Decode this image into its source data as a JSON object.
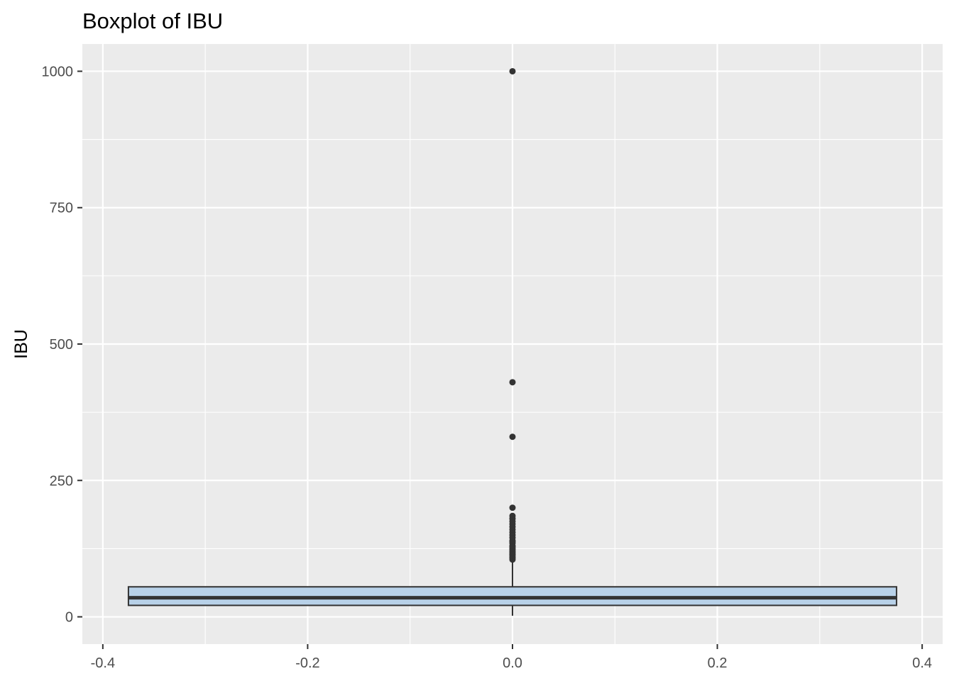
{
  "chart_data": {
    "type": "boxplot",
    "title": "Boxplot of IBU",
    "xlabel": "",
    "ylabel": "IBU",
    "xlim": [
      -0.42,
      0.42
    ],
    "ylim": [
      -50,
      1050
    ],
    "x_ticks": [
      -0.4,
      -0.2,
      0.0,
      0.2,
      0.4
    ],
    "x_tick_labels": [
      "-0.4",
      "-0.2",
      "0.0",
      "0.2",
      "0.4"
    ],
    "y_ticks": [
      0,
      250,
      500,
      750,
      1000
    ],
    "y_tick_labels": [
      "0",
      "250",
      "500",
      "750",
      "1000"
    ],
    "grid": true,
    "legend": "none",
    "box": {
      "x": 0.0,
      "xmin": -0.375,
      "xmax": 0.375,
      "whisker_low": 2,
      "q1": 21,
      "median": 35,
      "q3": 55,
      "whisker_high": 103
    },
    "outliers": [
      105,
      108,
      110,
      113,
      115,
      118,
      120,
      123,
      125,
      128,
      130,
      135,
      138,
      140,
      145,
      150,
      155,
      160,
      165,
      170,
      175,
      180,
      185,
      200,
      330,
      430,
      1000
    ],
    "colors": {
      "panel": "#ebebeb",
      "grid": "#ffffff",
      "box_fill": "#b8d1e8",
      "box_line": "#333333",
      "point": "#333333"
    }
  }
}
